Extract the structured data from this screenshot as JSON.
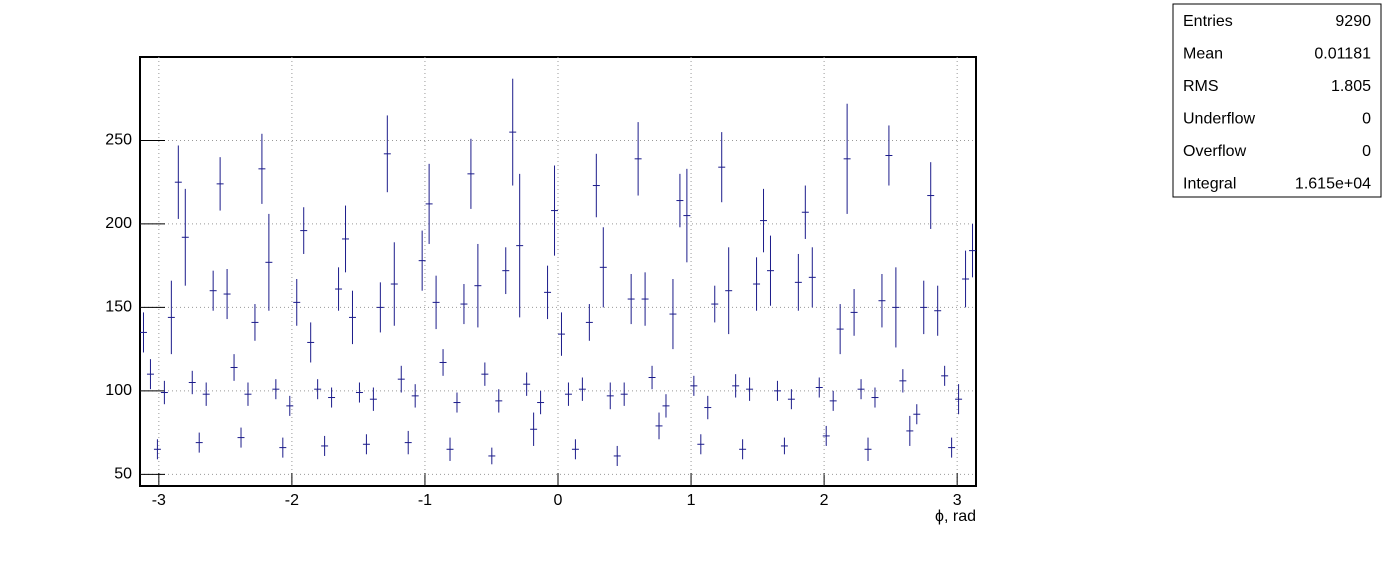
{
  "chart_data": {
    "type": "errorbar",
    "x_label": "ϕ, rad",
    "color": "#1b1b8a",
    "grid": true,
    "xlim": [
      -3.1416,
      3.1416
    ],
    "ylim": [
      43,
      300
    ],
    "xticks": [
      -3,
      -2,
      -1,
      0,
      1,
      2,
      3
    ],
    "yticks": [
      50,
      100,
      150,
      200,
      250
    ],
    "values": [
      135,
      110,
      65,
      99,
      144,
      225,
      192,
      105,
      69,
      98,
      160,
      224,
      158,
      114,
      72,
      98,
      141,
      233,
      177,
      101,
      66,
      91,
      153,
      196,
      129,
      101,
      67,
      96,
      161,
      191,
      144,
      99,
      68,
      95,
      150,
      242,
      164,
      107,
      69,
      97,
      178,
      212,
      153,
      117,
      65,
      93,
      152,
      230,
      163,
      110,
      61,
      94,
      172,
      255,
      187,
      104,
      77,
      93,
      159,
      208,
      134,
      98,
      65,
      101,
      141,
      223,
      174,
      97,
      61,
      98,
      155,
      239,
      155,
      108,
      79,
      91,
      146,
      214,
      205,
      103,
      68,
      90,
      152,
      234,
      160,
      103,
      65,
      101,
      164,
      202,
      172,
      100,
      67,
      95,
      165,
      207,
      168,
      102,
      73,
      94,
      137,
      239,
      147,
      101,
      65,
      96,
      154,
      241,
      150,
      106,
      76,
      86,
      150,
      217,
      148,
      109,
      66,
      95,
      167,
      184
    ],
    "errors": [
      12,
      9,
      6,
      7,
      22,
      22,
      29,
      7,
      6,
      7,
      12,
      16,
      15,
      8,
      6,
      7,
      11,
      21,
      29,
      6,
      6,
      6,
      14,
      14,
      12,
      6,
      6,
      6,
      13,
      20,
      16,
      6,
      6,
      7,
      15,
      23,
      25,
      8,
      7,
      7,
      18,
      24,
      16,
      8,
      7,
      6,
      12,
      21,
      25,
      7,
      5,
      7,
      14,
      32,
      43,
      7,
      10,
      7,
      16,
      27,
      13,
      7,
      6,
      7,
      11,
      19,
      24,
      8,
      6,
      7,
      15,
      22,
      16,
      7,
      8,
      7,
      21,
      16,
      28,
      6,
      6,
      7,
      11,
      21,
      26,
      7,
      6,
      7,
      16,
      19,
      21,
      6,
      5,
      6,
      17,
      16,
      18,
      6,
      6,
      6,
      15,
      33,
      14,
      6,
      7,
      6,
      16,
      18,
      24,
      7,
      9,
      6,
      16,
      20,
      15,
      6,
      6,
      9,
      17,
      16
    ],
    "stats": [
      {
        "label": "Entries",
        "value": 9290
      },
      {
        "label": "Mean",
        "value": 0.01181
      },
      {
        "label": "RMS",
        "value": 1.805
      },
      {
        "label": "Underflow",
        "value": 0
      },
      {
        "label": "Overflow",
        "value": 0
      },
      {
        "label": "Integral",
        "value": "1.615e+04"
      }
    ]
  }
}
